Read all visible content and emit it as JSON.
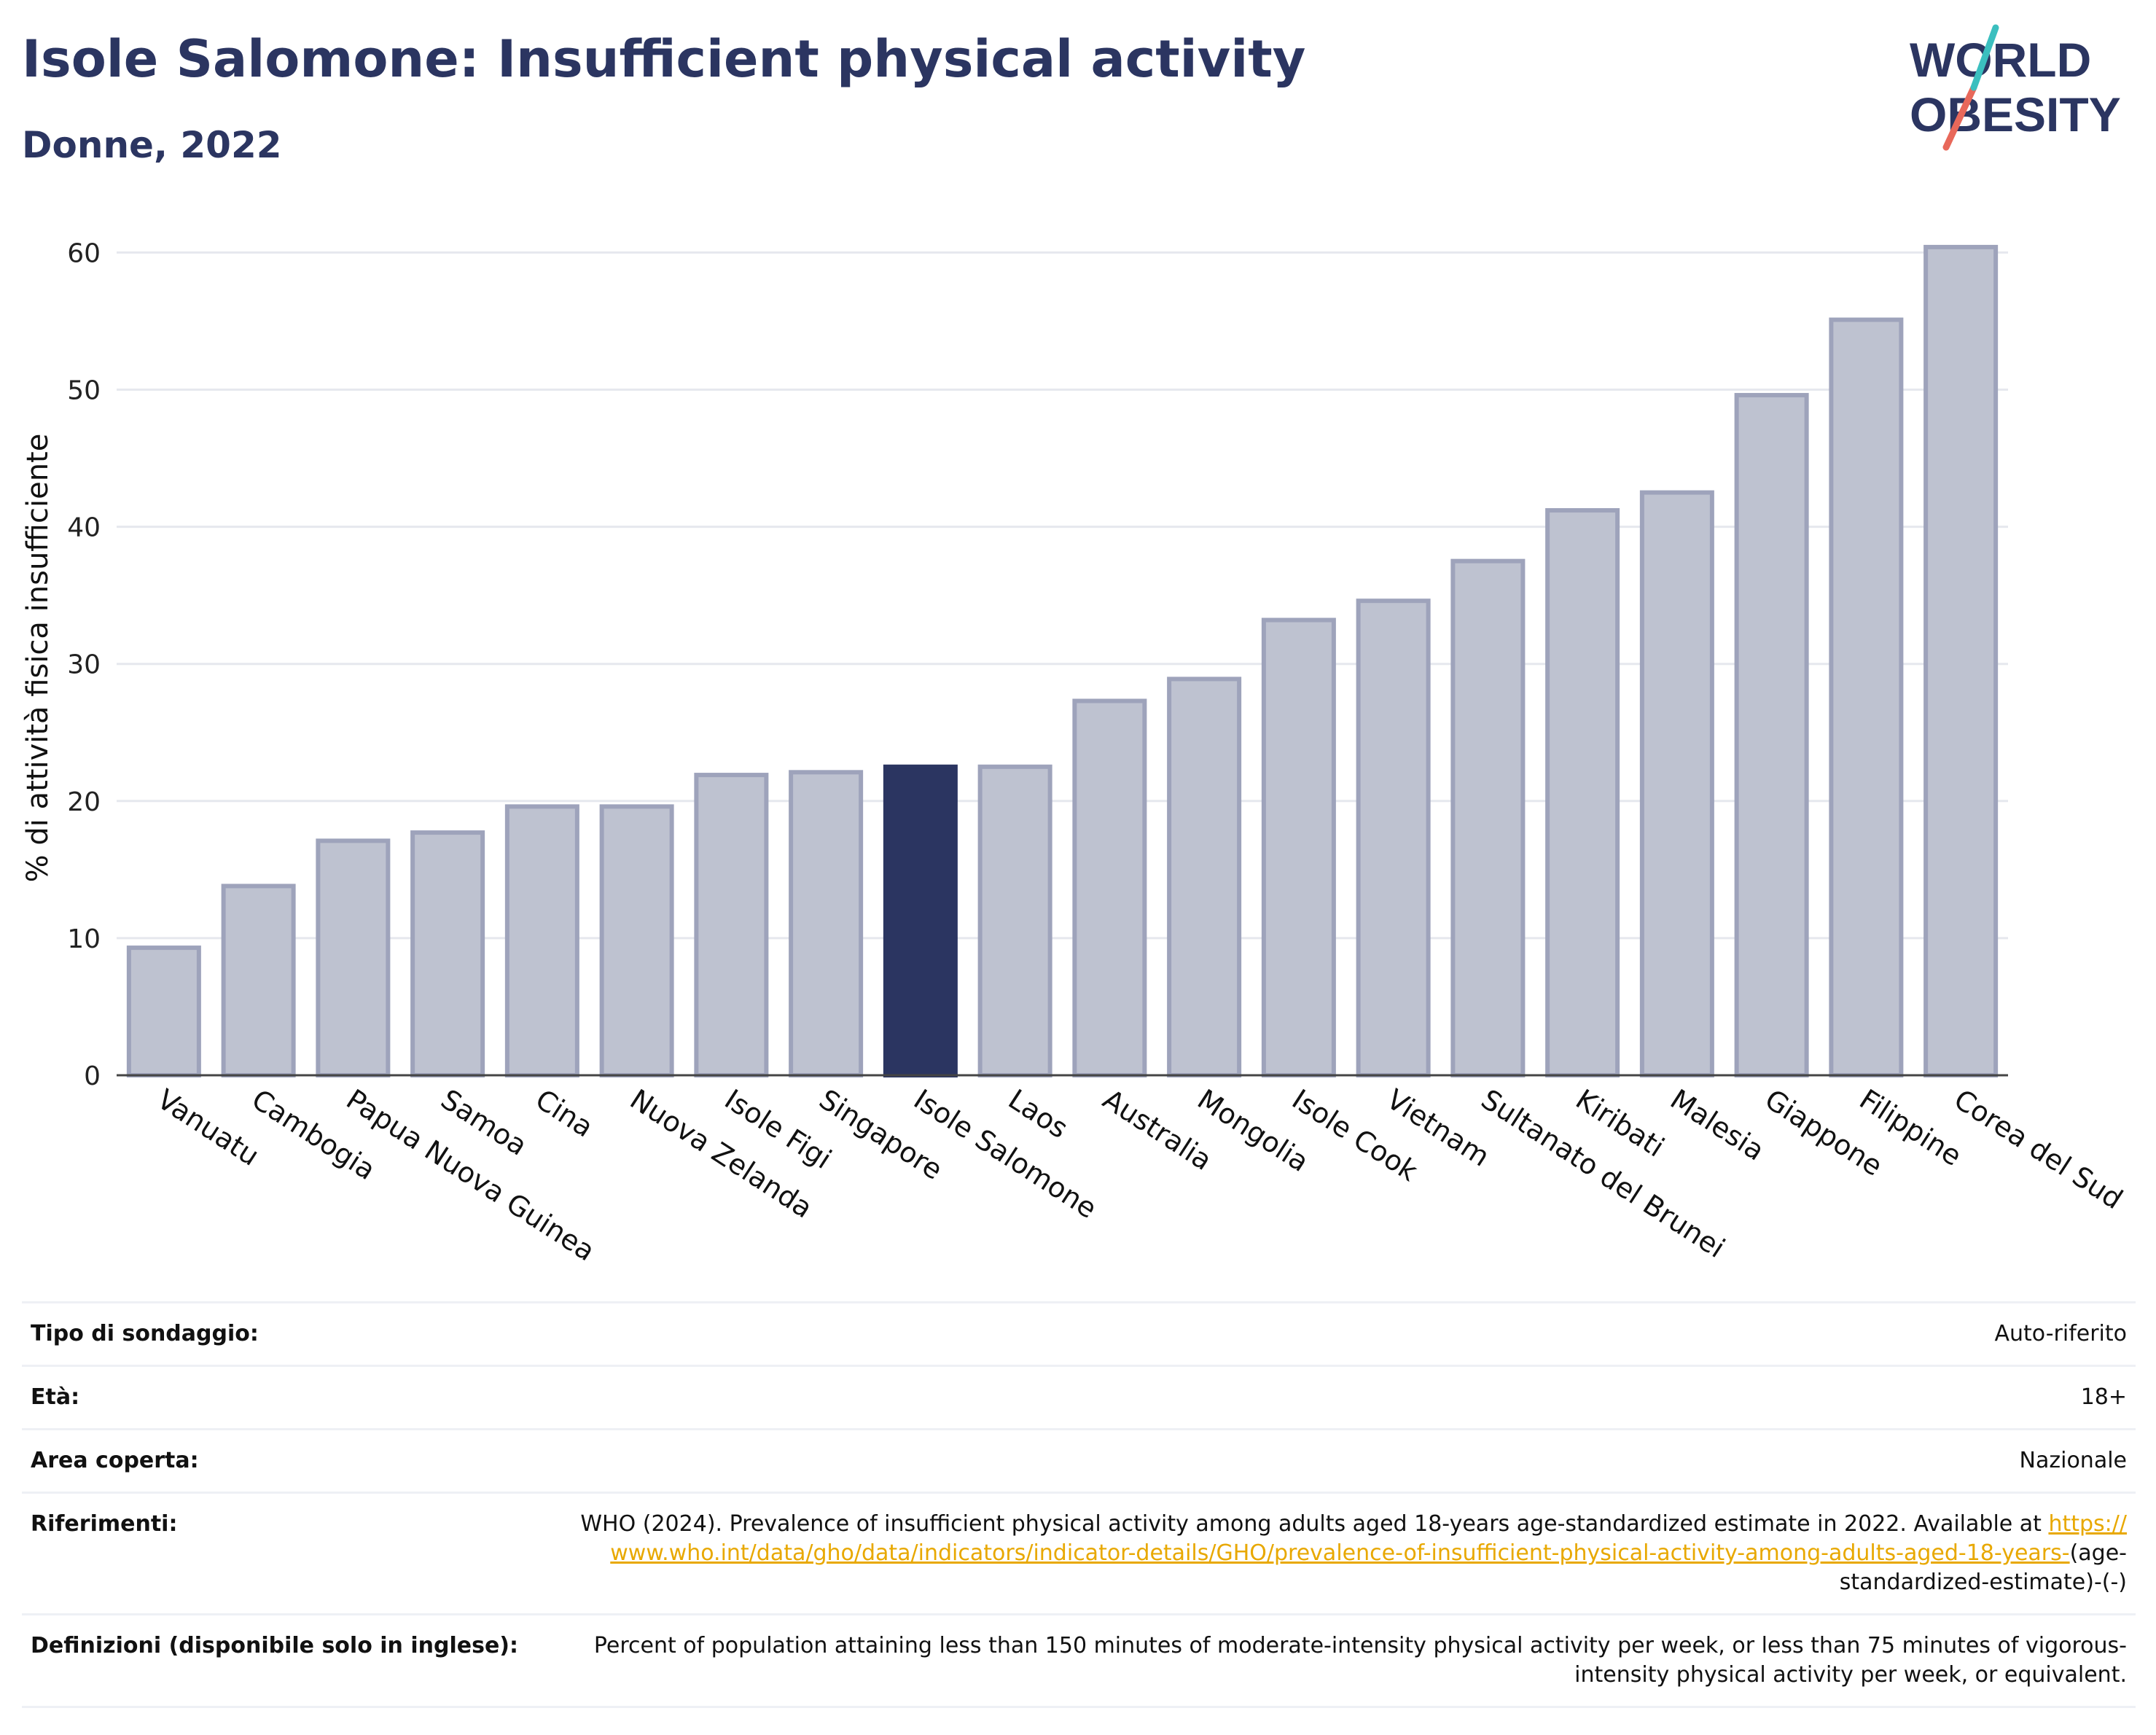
{
  "header": {
    "title": "Isole Salomone: Insufficient physical activity",
    "subtitle": "Donne, 2022"
  },
  "logo": {
    "line1": "WORLD",
    "line2": "OBESITY",
    "colors": {
      "text": "#2b3561",
      "slash_red": "#e8685a",
      "slash_teal": "#3bbfbf"
    }
  },
  "chart_data": {
    "type": "bar",
    "title": "",
    "xlabel": "",
    "ylabel": "% di attività fisica insufficiente",
    "ylim": [
      0,
      63
    ],
    "yticks": [
      0,
      10,
      20,
      30,
      40,
      50,
      60
    ],
    "grid": true,
    "highlight_category": "Isole Salomone",
    "colors": {
      "bar": "#bec2d0",
      "bar_border": "#9ea3bb",
      "highlight": "#2b3561",
      "grid": "#e6e8ee",
      "axis": "#444444"
    },
    "categories": [
      "Vanuatu",
      "Cambogia",
      "Papua Nuova Guinea",
      "Samoa",
      "Cina",
      "Nuova Zelanda",
      "Isole Figi",
      "Singapore",
      "Isole Salomone",
      "Laos",
      "Australia",
      "Mongolia",
      "Isole Cook",
      "Vietnam",
      "Sultanato del Brunei",
      "Kiribati",
      "Malesia",
      "Giappone",
      "Filippine",
      "Corea del Sud"
    ],
    "values": [
      9.3,
      13.8,
      17.1,
      17.7,
      19.6,
      19.6,
      21.9,
      22.1,
      22.5,
      22.5,
      27.3,
      28.9,
      33.2,
      34.6,
      37.5,
      41.2,
      42.5,
      49.6,
      55.1,
      60.4
    ]
  },
  "info": {
    "survey_type": {
      "label": "Tipo di sondaggio:",
      "value": "Auto-riferito"
    },
    "age": {
      "label": "Età:",
      "value": "18+"
    },
    "area": {
      "label": "Area coperta:",
      "value": "Nazionale"
    },
    "references": {
      "label": "Riferimenti:",
      "text_before": "WHO (2024). Prevalence of insufficient physical activity among adults aged 18-years age-standardized estimate in 2022. Available at ",
      "link": "https://www.who.int/data/gho/data/indicators/indicator-details/GHO/prevalence-of-insufficient-physical-activity-among-adults-aged-18-years-",
      "text_after": "(age-standardized-estimate)-(-)"
    },
    "definitions": {
      "label": "Definizioni (disponibile solo in inglese):",
      "value": "Percent of population attaining less than 150 minutes of moderate-intensity physical activity per week, or less than 75 minutes of vigorous-intensity physical activity per week, or equivalent."
    }
  }
}
